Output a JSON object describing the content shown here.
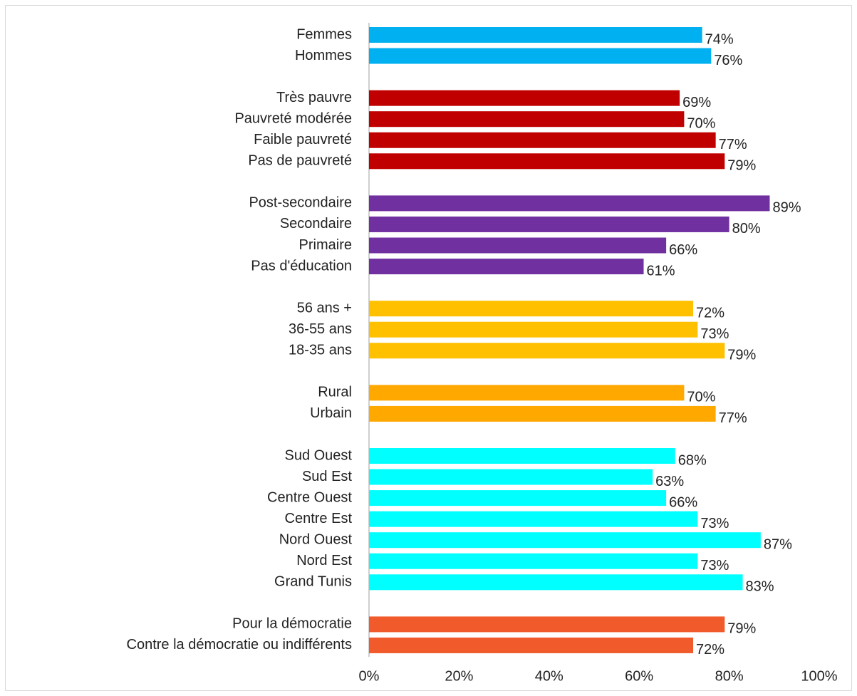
{
  "chart_data": {
    "type": "bar",
    "orientation": "horizontal",
    "categories": [
      "Femmes",
      "Hommes",
      null,
      "Très pauvre",
      "Pauvreté modérée",
      "Faible pauvreté",
      "Pas de pauvreté",
      null,
      "Post-secondaire",
      "Secondaire",
      "Primaire",
      "Pas d'éducation",
      null,
      "56 ans +",
      "36-55 ans",
      "18-35 ans",
      null,
      "Rural",
      "Urbain",
      null,
      "Sud Ouest",
      "Sud Est",
      "Centre Ouest",
      "Centre Est",
      "Nord Ouest",
      "Nord Est",
      "Grand Tunis",
      null,
      "Pour la démocratie",
      "Contre la démocratie ou indifférents"
    ],
    "values": [
      74,
      76,
      null,
      69,
      70,
      77,
      79,
      null,
      89,
      80,
      66,
      61,
      null,
      72,
      73,
      79,
      null,
      70,
      77,
      null,
      68,
      63,
      66,
      73,
      87,
      73,
      83,
      null,
      79,
      72
    ],
    "value_labels": [
      "74%",
      "76%",
      null,
      "69%",
      "70%",
      "77%",
      "79%",
      null,
      "89%",
      "80%",
      "66%",
      "61%",
      null,
      "72%",
      "73%",
      "79%",
      null,
      "70%",
      "77%",
      null,
      "68%",
      "63%",
      "66%",
      "73%",
      "87%",
      "73%",
      "83%",
      null,
      "79%",
      "72%"
    ],
    "colors": [
      "#00b0f0",
      "#00b0f0",
      null,
      "#c00000",
      "#c00000",
      "#c00000",
      "#c00000",
      null,
      "#7030a0",
      "#7030a0",
      "#7030a0",
      "#7030a0",
      null,
      "#ffc000",
      "#ffc000",
      "#ffc000",
      null,
      "#ffa800",
      "#ffa800",
      null,
      "#00ffff",
      "#00ffff",
      "#00ffff",
      "#00ffff",
      "#00ffff",
      "#00ffff",
      "#00ffff",
      null,
      "#f15a2b",
      "#f15a2b"
    ],
    "xlim": [
      0,
      100
    ],
    "xticks": [
      {
        "value": 0,
        "label": "0%"
      },
      {
        "value": 20,
        "label": "20%"
      },
      {
        "value": 40,
        "label": "40%"
      },
      {
        "value": 60,
        "label": "60%"
      },
      {
        "value": 80,
        "label": "80%"
      },
      {
        "value": 100,
        "label": "100%"
      }
    ],
    "grid": false
  }
}
